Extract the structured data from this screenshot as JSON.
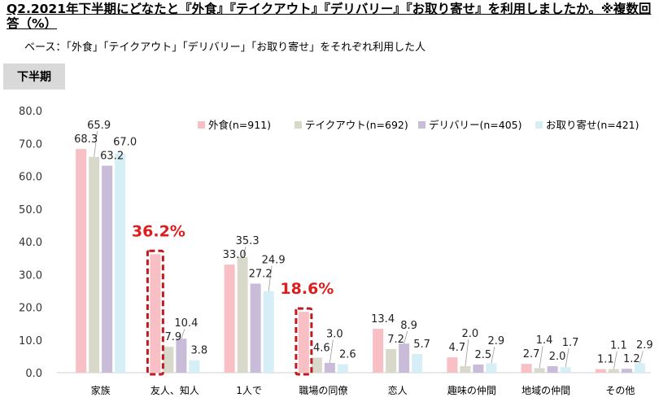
{
  "header": {
    "title": "Q2.2021年下半期にどなたと『外食』『テイクアウト』『デリバリー』『お取り寄せ』を利用しましたか。※複数回答（%）",
    "base_note": "ベース：「外食」「テイクアウト」「デリバリー」「お取り寄せ」をそれぞれ利用した人",
    "period_badge": "下半期"
  },
  "chart_data": {
    "type": "bar",
    "categories": [
      "家族",
      "友人、知人",
      "1人で",
      "職場の同僚",
      "恋人",
      "趣味の仲間",
      "地域の仲間",
      "その他"
    ],
    "series": [
      {
        "name": "外食(n=911)",
        "color": "#f8c0c4",
        "values": [
          68.3,
          36.2,
          33.0,
          18.6,
          13.4,
          4.7,
          2.7,
          1.1
        ]
      },
      {
        "name": "テイクアウト(n=692)",
        "color": "#d9d9cb",
        "values": [
          65.9,
          7.9,
          35.3,
          4.6,
          7.2,
          2.0,
          1.4,
          1.1
        ]
      },
      {
        "name": "デリバリー(n=405)",
        "color": "#c9bcd8",
        "values": [
          63.2,
          10.4,
          27.2,
          3.0,
          8.9,
          2.5,
          2.0,
          1.2
        ]
      },
      {
        "name": "お取り寄せ(n=421)",
        "color": "#d6eef6",
        "values": [
          67.0,
          3.8,
          24.9,
          2.6,
          5.7,
          2.9,
          1.7,
          2.9
        ]
      }
    ],
    "ylim": [
      0,
      80
    ],
    "yticks": [
      "0.0",
      "10.0",
      "20.0",
      "30.0",
      "40.0",
      "50.0",
      "60.0",
      "70.0",
      "80.0"
    ],
    "highlights": [
      {
        "category": "友人、知人",
        "series": "外食(n=911)",
        "text": "36.2%",
        "color": "#e01b1b"
      },
      {
        "category": "職場の同僚",
        "series": "外食(n=911)",
        "text": "18.6%",
        "color": "#e01b1b"
      }
    ],
    "legend": "top-right",
    "grid": false
  }
}
